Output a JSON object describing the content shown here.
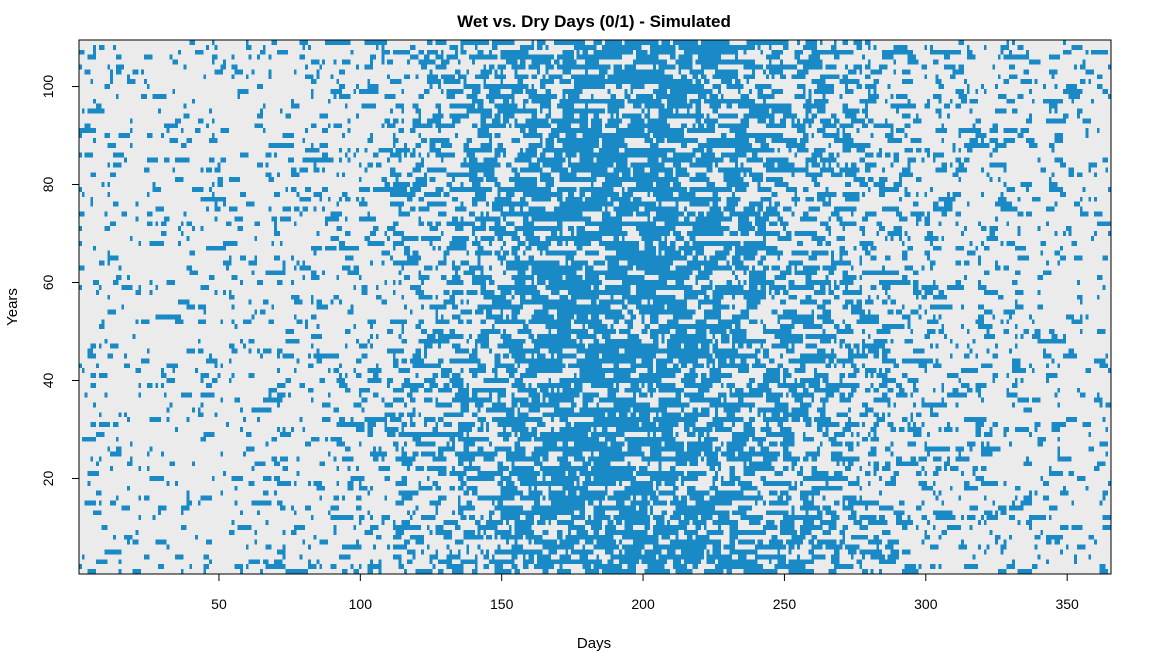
{
  "chart_data": {
    "type": "heatmap",
    "title": "Wet vs. Dry Days (0/1) - Simulated",
    "xlabel": "Days",
    "ylabel": "Years",
    "xlim": [
      0.5,
      365.5
    ],
    "ylim": [
      0.5,
      109.5
    ],
    "n_days": 365,
    "n_years": 109,
    "x_ticks": [
      50,
      100,
      150,
      200,
      250,
      300,
      350
    ],
    "y_ticks": [
      20,
      40,
      60,
      80,
      100
    ],
    "value_levels": [
      0,
      1
    ],
    "value_meaning": {
      "0": "Dry",
      "1": "Wet"
    },
    "colors": {
      "0": "#ebebeb",
      "1": "#1a8ac6"
    },
    "wet_probability_by_day_note": "Simulated binary field; wet frequency low in early/late year (~0.1), peaking around days 170–230 (~0.5)",
    "wet_probability_profile": {
      "days": [
        1,
        50,
        100,
        130,
        160,
        190,
        220,
        250,
        280,
        310,
        340,
        365
      ],
      "p_wet": [
        0.1,
        0.1,
        0.16,
        0.3,
        0.45,
        0.5,
        0.47,
        0.38,
        0.26,
        0.17,
        0.12,
        0.1
      ]
    },
    "grid": false,
    "legend": "none"
  }
}
